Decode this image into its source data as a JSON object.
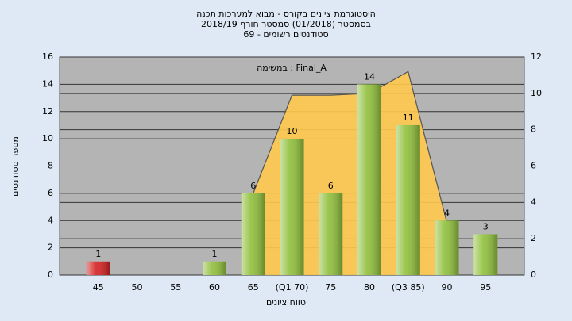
{
  "chart_data": {
    "type": "bar",
    "title": [
      "היסטוגרמת ציונים בקורס - מבוא למערכות תכנה",
      "בסמסטר  (01/2018)  סמסטר חורף 2018/19",
      "סטודנטים רשומים - 69"
    ],
    "annotation": "במשימה : Final_A",
    "y_label": "מספר סטודנטים",
    "x_label": "טווח ציונים",
    "categories": [
      "45",
      "50",
      "55",
      "60",
      "65",
      "(Q1 70)",
      "75",
      "80",
      "(Q3 85)",
      "90",
      "95"
    ],
    "values": [
      1,
      0,
      0,
      1,
      6,
      10,
      6,
      14,
      11,
      4,
      3
    ],
    "value_labels": [
      "1",
      null,
      null,
      "1",
      "6",
      "10",
      "6",
      "14",
      "11",
      "4",
      "3"
    ],
    "colors": [
      "#d42020",
      "#8fbf3a",
      "#8fbf3a",
      "#8fbf3a",
      "#8fbf3a",
      "#8fbf3a",
      "#8fbf3a",
      "#8fbf3a",
      "#8fbf3a",
      "#8fbf3a",
      "#8fbf3a"
    ],
    "curve": {
      "axis": "y2",
      "color": "#ffc94d",
      "values": [
        null,
        null,
        null,
        null,
        4.5,
        9.9,
        9.9,
        10,
        11.2,
        2.9,
        null
      ]
    },
    "ylim": [
      0,
      16
    ],
    "yticks": [
      0,
      2,
      4,
      6,
      8,
      10,
      12,
      14,
      16
    ],
    "y2lim": [
      0,
      12
    ],
    "y2ticks": [
      0,
      2,
      4,
      6,
      8,
      10,
      12
    ],
    "grid": true
  }
}
